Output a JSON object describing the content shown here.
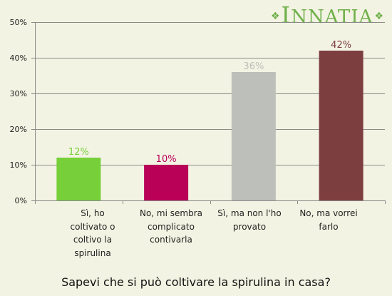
{
  "logo": {
    "text": "INNATIA"
  },
  "chart_data": {
    "type": "bar",
    "title": "Sapevi che si può coltivare la spirulina in casa?",
    "categories": [
      "Sì, ho\ncoltivato o\ncoltivo la\nspirulina",
      "No, mi sembra\ncomplicato\ncontivarla",
      "Sì, ma non l'ho\nprovato",
      "No, ma vorrei\nfarlo"
    ],
    "values": [
      12,
      10,
      36,
      42
    ],
    "value_labels": [
      "12%",
      "10%",
      "36%",
      "42%"
    ],
    "colors": [
      "#77d03a",
      "#b80157",
      "#bdbfba",
      "#7d3e40"
    ],
    "ylim": [
      0,
      50
    ],
    "yticks": [
      0,
      10,
      20,
      30,
      40,
      50
    ],
    "ytick_labels": [
      "0%",
      "10%",
      "20%",
      "30%",
      "40%",
      "50%"
    ],
    "grid": true
  }
}
